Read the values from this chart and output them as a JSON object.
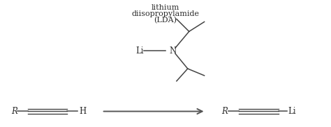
{
  "bg_color": "#ffffff",
  "text_color": "#2d2d2d",
  "line_color": "#444444",
  "arrow_color": "#555555",
  "label_top1": "lithium",
  "label_top2": "diisopropylamide",
  "label_top3": "(LDA)",
  "figsize": [
    4.74,
    1.83
  ],
  "dpi": 100
}
